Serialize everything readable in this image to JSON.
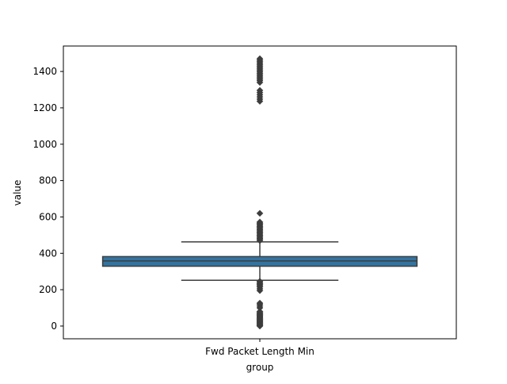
{
  "chart_data": {
    "type": "box",
    "title": "",
    "xlabel": "group",
    "ylabel": "value",
    "ylim": [
      -70,
      1540
    ],
    "yticks": [
      0,
      200,
      400,
      600,
      800,
      1000,
      1200,
      1400
    ],
    "categories": [
      "Fwd Packet Length Min"
    ],
    "box": {
      "whisker_low": 252,
      "q1": 329,
      "median": 358,
      "q3": 382,
      "whisker_high": 463
    },
    "outliers": [
      0,
      3,
      6,
      10,
      14,
      18,
      22,
      26,
      30,
      34,
      38,
      42,
      46,
      50,
      54,
      58,
      62,
      66,
      70,
      75,
      80,
      100,
      110,
      120,
      126,
      195,
      205,
      215,
      222,
      228,
      234,
      240,
      246,
      470,
      476,
      482,
      488,
      494,
      500,
      506,
      512,
      518,
      524,
      530,
      536,
      542,
      548,
      554,
      560,
      566,
      572,
      620,
      1236,
      1248,
      1260,
      1272,
      1284,
      1296,
      1340,
      1350,
      1358,
      1366,
      1374,
      1382,
      1390,
      1398,
      1406,
      1414,
      1422,
      1430,
      1438,
      1446,
      1454,
      1462,
      1470
    ],
    "colors": {
      "box_fill": "#3274a1",
      "lines": "#3d3d3d",
      "axes": "#000000"
    },
    "grid": false,
    "legend": "none"
  }
}
